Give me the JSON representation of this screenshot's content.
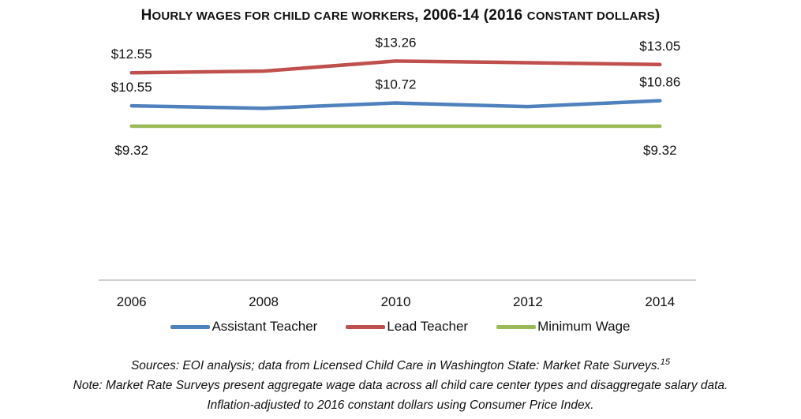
{
  "title": {
    "first_letter": "H",
    "rest_smallcaps": "OURLY WAGES FOR CHILD CARE WORKERS",
    "suffix": ", 2006-14 (2016 ",
    "suffix_smallcaps": "CONSTANT DOLLARS",
    "close": ")"
  },
  "chart_data": {
    "type": "line",
    "title": "Hourly wages for child care workers, 2006-14 (2016 constant dollars)",
    "categories": [
      "2006",
      "2008",
      "2010",
      "2012",
      "2014"
    ],
    "series": [
      {
        "name": "Assistant Teacher",
        "color": "#4f81bd",
        "values": [
          10.55,
          10.4,
          10.72,
          10.5,
          10.86
        ],
        "labels": [
          "$10.55",
          "",
          "$10.72",
          "",
          "$10.86"
        ]
      },
      {
        "name": "Lead Teacher",
        "color": "#c0504d",
        "values": [
          12.55,
          12.65,
          13.26,
          13.16,
          13.05
        ],
        "labels": [
          "$12.55",
          "",
          "$13.26",
          "",
          "$13.05"
        ]
      },
      {
        "name": "Minimum Wage",
        "color": "#9bbb59",
        "values": [
          9.32,
          9.32,
          9.32,
          9.32,
          9.32
        ],
        "labels": [
          "$9.32",
          "",
          "",
          "",
          "$9.32"
        ]
      }
    ],
    "ylim": [
      0,
      16
    ],
    "grid": false,
    "legend_position": "bottom"
  },
  "notes": {
    "sources": "Sources: EOI analysis; data from Licensed Child Care in Washington State: Market Rate Surveys.",
    "sources_footnote": "15",
    "note1": "Note: Market Rate Surveys present aggregate wage data across all child care center types and disaggregate salary data.",
    "note2": "Inflation-adjusted to 2016 constant dollars using Consumer Price Index."
  }
}
